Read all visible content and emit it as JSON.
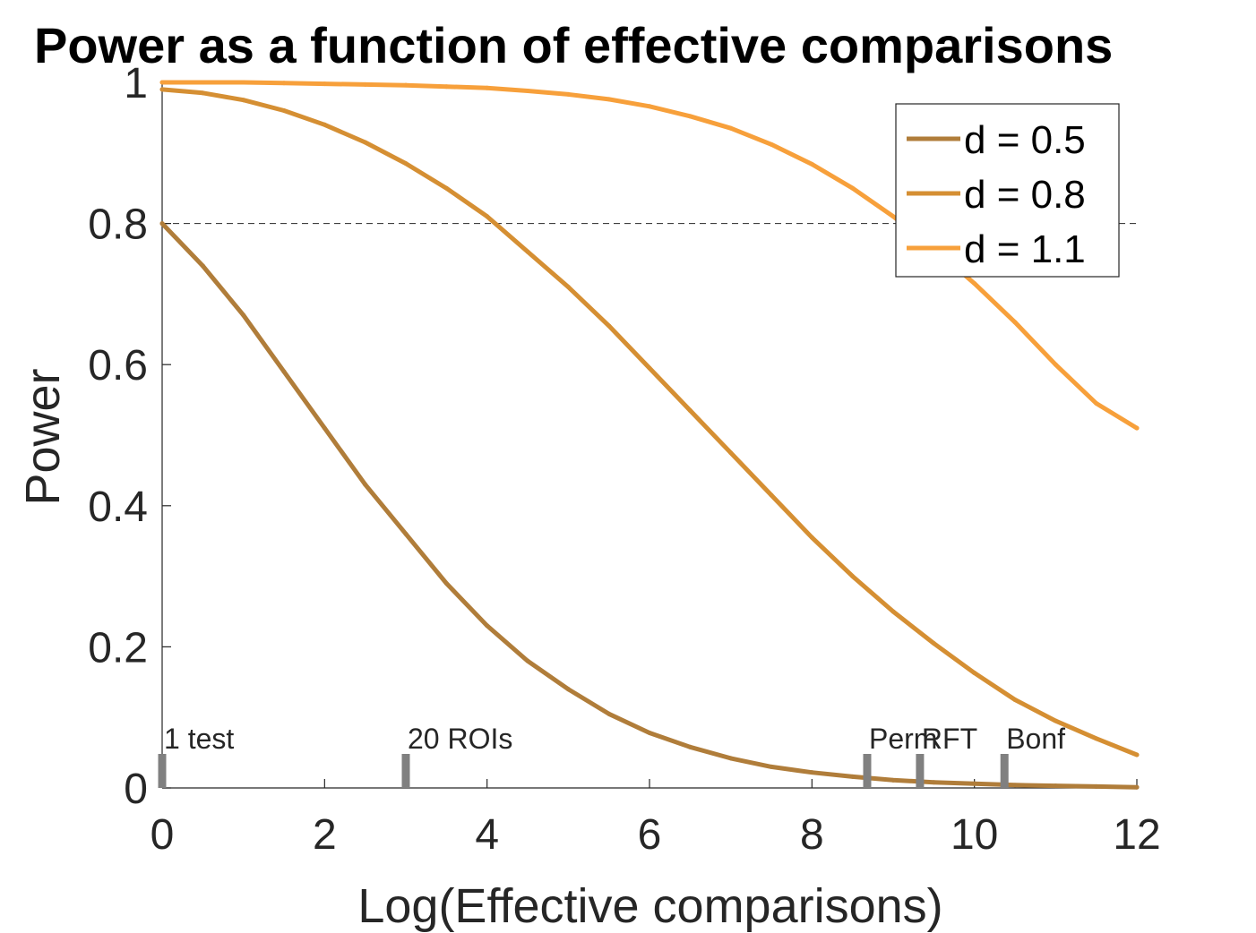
{
  "chart_data": {
    "type": "line",
    "title": "Power as a function of effective comparisons",
    "xlabel": "Log(Effective comparisons)",
    "ylabel": "Power",
    "xlim": [
      0,
      12
    ],
    "ylim": [
      0,
      1
    ],
    "x_ticks": [
      "0",
      "2",
      "4",
      "6",
      "8",
      "10",
      "12"
    ],
    "y_ticks": [
      "0",
      "0.2",
      "0.4",
      "0.6",
      "0.8",
      "1"
    ],
    "reference_line": {
      "y": 0.8,
      "style": "dashed"
    },
    "grid": false,
    "legend_position": "top-right",
    "x": [
      0,
      0.5,
      1,
      1.5,
      2,
      2.5,
      3,
      3.5,
      4,
      4.5,
      5,
      5.5,
      6,
      6.5,
      7,
      7.5,
      8,
      8.5,
      9,
      9.5,
      10,
      10.5,
      11,
      11.5,
      12
    ],
    "series": [
      {
        "name": "d = 0.5",
        "color": "#b07d3a",
        "values": [
          0.8,
          0.74,
          0.67,
          0.59,
          0.51,
          0.43,
          0.36,
          0.29,
          0.23,
          0.18,
          0.14,
          0.105,
          0.078,
          0.058,
          0.042,
          0.03,
          0.022,
          0.016,
          0.011,
          0.008,
          0.006,
          0.004,
          0.003,
          0.002,
          0.001
        ]
      },
      {
        "name": "d = 0.8",
        "color": "#d58f33",
        "values": [
          0.99,
          0.985,
          0.975,
          0.96,
          0.94,
          0.915,
          0.885,
          0.85,
          0.81,
          0.76,
          0.71,
          0.655,
          0.595,
          0.535,
          0.475,
          0.415,
          0.355,
          0.3,
          0.25,
          0.205,
          0.163,
          0.125,
          0.095,
          0.07,
          0.047
        ]
      },
      {
        "name": "d = 1.1",
        "color": "#f7a03b",
        "values": [
          1.0,
          1.0,
          1.0,
          0.999,
          0.998,
          0.997,
          0.996,
          0.994,
          0.992,
          0.988,
          0.983,
          0.976,
          0.966,
          0.952,
          0.935,
          0.912,
          0.884,
          0.85,
          0.81,
          0.765,
          0.715,
          0.66,
          0.6,
          0.545,
          0.51
        ]
      }
    ],
    "markers": [
      {
        "x": 0,
        "label": "1 test"
      },
      {
        "x": 3.0,
        "label": "20 ROIs"
      },
      {
        "x": 8.68,
        "label": "Perm"
      },
      {
        "x": 9.33,
        "label": "RFT"
      },
      {
        "x": 10.37,
        "label": "Bonf"
      }
    ],
    "colors": {
      "axis": "#262626",
      "marker": "#808080",
      "reference_line": "#262626"
    }
  }
}
